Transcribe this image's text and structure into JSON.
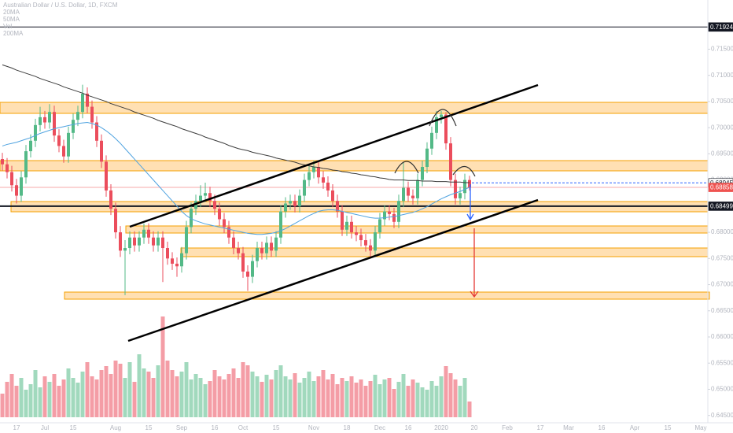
{
  "chart_data": {
    "type": "candlestick",
    "title": "Australian Dollar / U.S. Dollar, 1D, FXCM",
    "indicator_labels": [
      "20MA",
      "50MA",
      "Vol",
      "200MA"
    ],
    "categories": [
      null,
      null,
      null,
      "17",
      null,
      null,
      null,
      null,
      null,
      "Jul",
      null,
      null,
      null,
      null,
      null,
      "15",
      null,
      null,
      null,
      null,
      null,
      null,
      null,
      null,
      "Aug",
      null,
      null,
      null,
      null,
      null,
      null,
      "15",
      null,
      null,
      null,
      null,
      null,
      null,
      "Sep",
      null,
      null,
      null,
      null,
      null,
      null,
      "16",
      null,
      null,
      null,
      null,
      null,
      "Oct",
      null,
      null,
      null,
      null,
      null,
      null,
      "15",
      null,
      null,
      null,
      null,
      null,
      null,
      null,
      "Nov",
      null,
      null,
      null,
      null,
      null,
      null,
      "18",
      null,
      null,
      null,
      null,
      null,
      null,
      "Dec",
      null,
      null,
      null,
      null,
      null,
      "16",
      null,
      null,
      null,
      null,
      null,
      null,
      "2020",
      null,
      null,
      null,
      null,
      null,
      null,
      "20",
      null,
      null,
      null,
      null,
      null,
      null,
      "Feb",
      null,
      null,
      null,
      null,
      null,
      null,
      "17",
      null,
      null,
      null,
      null,
      null,
      "Mar",
      null,
      null,
      null,
      null,
      null,
      null,
      "16",
      null,
      null,
      null,
      null,
      null,
      null,
      "Apr",
      null,
      null,
      null,
      null,
      null,
      null,
      "15",
      null,
      null,
      null,
      null,
      null,
      null,
      "May",
      null
    ],
    "open": [
      0.694,
      0.693,
      0.6915,
      0.689,
      0.687,
      0.6905,
      0.6955,
      0.6975,
      0.7005,
      0.702,
      0.701,
      0.703,
      0.6985,
      0.6965,
      0.6945,
      0.699,
      0.7015,
      0.703,
      0.7065,
      0.704,
      0.701,
      0.6975,
      0.6935,
      0.688,
      0.6845,
      0.68,
      0.6765,
      0.677,
      0.679,
      0.6775,
      0.679,
      0.6805,
      0.679,
      0.6775,
      0.679,
      0.677,
      0.675,
      0.674,
      0.6735,
      0.676,
      0.681,
      0.6845,
      0.686,
      0.687,
      0.6875,
      0.686,
      0.6845,
      0.6825,
      0.681,
      0.679,
      0.677,
      0.676,
      0.6725,
      0.6715,
      0.6745,
      0.677,
      0.676,
      0.678,
      0.6765,
      0.679,
      0.684,
      0.6855,
      0.686,
      0.685,
      0.687,
      0.69,
      0.6915,
      0.6925,
      0.6905,
      0.6895,
      0.688,
      0.686,
      0.684,
      0.6805,
      0.682,
      0.68,
      0.6795,
      0.6785,
      0.6775,
      0.6765,
      0.68,
      0.6825,
      0.684,
      0.6835,
      0.682,
      0.686,
      0.6885,
      0.687,
      0.6865,
      0.69,
      0.6925,
      0.696,
      0.699,
      0.702,
      0.7025,
      0.697,
      0.69,
      0.6865,
      0.6875,
      0.69,
      null,
      null,
      null,
      null,
      null,
      null,
      null,
      null,
      null,
      null,
      null,
      null,
      null,
      null,
      null,
      null,
      null,
      null,
      null,
      null,
      null,
      null,
      null,
      null,
      null,
      null,
      null,
      null,
      null,
      null,
      null,
      null,
      null,
      null,
      null,
      null,
      null,
      null,
      null,
      null,
      null,
      null,
      null,
      null,
      null,
      null,
      null,
      null,
      null,
      null
    ],
    "high": [
      0.6952,
      0.6942,
      0.6927,
      0.6902,
      0.6917,
      0.6967,
      0.6987,
      0.7017,
      0.704,
      0.7032,
      0.7045,
      0.7042,
      0.6997,
      0.6977,
      0.7002,
      0.7027,
      0.7042,
      0.7082,
      0.7077,
      0.7052,
      0.7022,
      0.6987,
      0.6947,
      0.6892,
      0.6857,
      0.6812,
      0.6785,
      0.6802,
      0.6802,
      0.6802,
      0.6817,
      0.6817,
      0.6802,
      0.6802,
      0.6802,
      0.6782,
      0.6762,
      0.6752,
      0.6772,
      0.6822,
      0.6857,
      0.6872,
      0.689,
      0.6895,
      0.6887,
      0.6872,
      0.6857,
      0.6837,
      0.6822,
      0.6802,
      0.6782,
      0.6772,
      0.6737,
      0.6757,
      0.6782,
      0.6782,
      0.6792,
      0.6792,
      0.6802,
      0.6852,
      0.6867,
      0.6872,
      0.6872,
      0.6882,
      0.6912,
      0.6927,
      0.6937,
      0.6937,
      0.6917,
      0.6907,
      0.6892,
      0.6872,
      0.6852,
      0.6832,
      0.6832,
      0.6812,
      0.6807,
      0.6797,
      0.6787,
      0.6812,
      0.6837,
      0.6852,
      0.6852,
      0.6847,
      0.6872,
      0.6935,
      0.6897,
      0.6882,
      0.6912,
      0.6937,
      0.6972,
      0.7002,
      0.7032,
      0.7032,
      0.703,
      0.6982,
      0.6912,
      0.6887,
      0.6912,
      0.6908,
      null,
      null,
      null,
      null,
      null,
      null,
      null,
      null,
      null,
      null,
      null,
      null,
      null,
      null,
      null,
      null,
      null,
      null,
      null,
      null,
      null,
      null,
      null,
      null,
      null,
      null,
      null,
      null,
      null,
      null,
      null,
      null,
      null,
      null,
      null,
      null,
      null,
      null,
      null,
      null,
      null,
      null,
      null,
      null,
      null,
      null,
      null,
      null,
      null,
      null
    ],
    "low": [
      0.6918,
      0.6903,
      0.6878,
      0.6855,
      0.6858,
      0.6893,
      0.6943,
      0.6963,
      0.6993,
      0.6998,
      0.6998,
      0.6973,
      0.6953,
      0.6933,
      0.6933,
      0.6978,
      0.7003,
      0.7018,
      0.7028,
      0.6998,
      0.6963,
      0.6923,
      0.6868,
      0.6833,
      0.6788,
      0.6753,
      0.668,
      0.6758,
      0.6763,
      0.6763,
      0.6778,
      0.6778,
      0.6763,
      0.6763,
      0.6705,
      0.6738,
      0.6728,
      0.6715,
      0.6723,
      0.6748,
      0.6798,
      0.6833,
      0.6848,
      0.6858,
      0.6848,
      0.6833,
      0.6813,
      0.6798,
      0.6778,
      0.6758,
      0.6748,
      0.6713,
      0.6688,
      0.6703,
      0.6733,
      0.6748,
      0.6748,
      0.6753,
      0.6753,
      0.6778,
      0.6828,
      0.6843,
      0.6838,
      0.6838,
      0.6858,
      0.6888,
      0.6903,
      0.6893,
      0.6883,
      0.6868,
      0.6848,
      0.6828,
      0.6793,
      0.6793,
      0.6788,
      0.6783,
      0.6773,
      0.6763,
      0.6753,
      0.6753,
      0.6788,
      0.6813,
      0.6823,
      0.6808,
      0.6808,
      0.6848,
      0.6858,
      0.6853,
      0.6853,
      0.6888,
      0.6913,
      0.6948,
      0.6978,
      0.7008,
      0.6958,
      0.6888,
      0.6853,
      0.6853,
      0.6863,
      0.688,
      null,
      null,
      null,
      null,
      null,
      null,
      null,
      null,
      null,
      null,
      null,
      null,
      null,
      null,
      null,
      null,
      null,
      null,
      null,
      null,
      null,
      null,
      null,
      null,
      null,
      null,
      null,
      null,
      null,
      null,
      null,
      null,
      null,
      null,
      null,
      null,
      null,
      null,
      null,
      null,
      null,
      null,
      null,
      null,
      null,
      null,
      null,
      null,
      null,
      null
    ],
    "close": [
      0.693,
      0.6915,
      0.689,
      0.687,
      0.6905,
      0.6955,
      0.6975,
      0.7005,
      0.702,
      0.701,
      0.703,
      0.6985,
      0.6965,
      0.6945,
      0.699,
      0.7015,
      0.703,
      0.7065,
      0.704,
      0.701,
      0.6975,
      0.6935,
      0.688,
      0.6845,
      0.68,
      0.6765,
      0.677,
      0.679,
      0.6775,
      0.679,
      0.6805,
      0.679,
      0.6775,
      0.679,
      0.677,
      0.675,
      0.674,
      0.6735,
      0.676,
      0.681,
      0.6845,
      0.686,
      0.687,
      0.6875,
      0.686,
      0.6845,
      0.6825,
      0.681,
      0.679,
      0.677,
      0.676,
      0.6725,
      0.6715,
      0.6745,
      0.677,
      0.676,
      0.678,
      0.6765,
      0.679,
      0.684,
      0.6855,
      0.686,
      0.685,
      0.687,
      0.69,
      0.6915,
      0.6925,
      0.6905,
      0.6895,
      0.688,
      0.686,
      0.684,
      0.6805,
      0.682,
      0.68,
      0.6795,
      0.6785,
      0.6775,
      0.6765,
      0.68,
      0.6825,
      0.684,
      0.6835,
      0.682,
      0.686,
      0.6885,
      0.687,
      0.6865,
      0.69,
      0.6925,
      0.696,
      0.699,
      0.702,
      0.7025,
      0.697,
      0.69,
      0.6865,
      0.6875,
      0.69,
      0.6886,
      null,
      null,
      null,
      null,
      null,
      null,
      null,
      null,
      null,
      null,
      null,
      null,
      null,
      null,
      null,
      null,
      null,
      null,
      null,
      null,
      null,
      null,
      null,
      null,
      null,
      null,
      null,
      null,
      null,
      null,
      null,
      null,
      null,
      null,
      null,
      null,
      null,
      null,
      null,
      null,
      null,
      null,
      null,
      null,
      null,
      null,
      null,
      null,
      null,
      null
    ],
    "volume": [
      30,
      45,
      55,
      40,
      50,
      35,
      42,
      60,
      38,
      52,
      45,
      55,
      40,
      48,
      62,
      50,
      44,
      58,
      70,
      52,
      48,
      60,
      65,
      55,
      72,
      68,
      50,
      70,
      45,
      80,
      62,
      58,
      50,
      66,
      128,
      72,
      60,
      52,
      58,
      70,
      48,
      55,
      50,
      42,
      46,
      60,
      52,
      48,
      55,
      62,
      50,
      70,
      66,
      58,
      52,
      45,
      54,
      48,
      60,
      66,
      52,
      48,
      56,
      44,
      50,
      58,
      46,
      52,
      60,
      48,
      55,
      42,
      50,
      46,
      52,
      44,
      48,
      40,
      46,
      54,
      42,
      48,
      50,
      36,
      45,
      55,
      40,
      48,
      44,
      38,
      35,
      46,
      40,
      52,
      65,
      56,
      48,
      40,
      50,
      20,
      null,
      null,
      null,
      null,
      null,
      null,
      null,
      null,
      null,
      null,
      null,
      null,
      null,
      null,
      null,
      null,
      null,
      null,
      null,
      null,
      null,
      null,
      null,
      null,
      null,
      null,
      null,
      null,
      null,
      null,
      null,
      null,
      null,
      null,
      null,
      null,
      null,
      null,
      null,
      null,
      null,
      null,
      null,
      null,
      null,
      null,
      null,
      null,
      null,
      null
    ],
    "series": [
      {
        "name": "200MA",
        "color": "#3c3c3c",
        "values": [
          0.712,
          0.7117,
          0.7114,
          0.711,
          0.7107,
          0.7104,
          0.7101,
          0.7098,
          0.7094,
          0.7091,
          0.7088,
          0.7085,
          0.7082,
          0.7078,
          0.7075,
          0.7072,
          0.7069,
          0.7066,
          0.7062,
          0.7059,
          0.7056,
          0.7053,
          0.705,
          0.7046,
          0.7043,
          0.704,
          0.7037,
          0.7034,
          0.703,
          0.7027,
          0.7024,
          0.7021,
          0.7018,
          0.7014,
          0.7011,
          0.7008,
          0.7005,
          0.7002,
          0.6998,
          0.6995,
          0.6992,
          0.6989,
          0.6986,
          0.6982,
          0.6979,
          0.6976,
          0.6973,
          0.697,
          0.6966,
          0.6963,
          0.696,
          0.6958,
          0.6956,
          0.6953,
          0.6951,
          0.6949,
          0.6947,
          0.6945,
          0.6942,
          0.694,
          0.6938,
          0.6936,
          0.6934,
          0.6931,
          0.6929,
          0.6927,
          0.6925,
          0.6924,
          0.6922,
          0.6921,
          0.6919,
          0.6918,
          0.6916,
          0.6915,
          0.6913,
          0.6912,
          0.691,
          0.6909,
          0.6907,
          0.6906,
          0.6904,
          0.6903,
          0.6901,
          0.69,
          0.69,
          0.69,
          0.6899,
          0.6899,
          0.6899,
          0.6898,
          0.6898,
          0.6898,
          0.6897,
          0.6897,
          0.6897,
          0.6896,
          0.6896,
          0.6896,
          0.6895,
          0.6895,
          null,
          null,
          null,
          null,
          null,
          null,
          null,
          null,
          null,
          null,
          null,
          null,
          null,
          null,
          null,
          null,
          null,
          null,
          null,
          null,
          null,
          null,
          null,
          null,
          null,
          null,
          null,
          null,
          null,
          null,
          null,
          null,
          null,
          null,
          null,
          null,
          null,
          null,
          null,
          null,
          null,
          null,
          null,
          null,
          null,
          null,
          null,
          null,
          null,
          null
        ]
      },
      {
        "name": "50MA",
        "color": "#4fa3e0",
        "values": [
          0.6965,
          0.6968,
          0.697,
          0.6972,
          0.6975,
          0.6978,
          0.6981,
          0.6985,
          0.6989,
          0.6992,
          0.6995,
          0.6998,
          0.7,
          0.7002,
          0.7004,
          0.7006,
          0.7008,
          0.7009,
          0.701,
          0.7008,
          0.7005,
          0.7,
          0.6994,
          0.6987,
          0.6979,
          0.697,
          0.696,
          0.695,
          0.694,
          0.693,
          0.692,
          0.691,
          0.69,
          0.689,
          0.688,
          0.687,
          0.686,
          0.685,
          0.684,
          0.6832,
          0.6826,
          0.6822,
          0.6819,
          0.6816,
          0.6814,
          0.6812,
          0.681,
          0.6808,
          0.6806,
          0.6804,
          0.6802,
          0.68,
          0.6798,
          0.6797,
          0.6796,
          0.6796,
          0.6797,
          0.6798,
          0.68,
          0.6803,
          0.6807,
          0.6812,
          0.6817,
          0.6822,
          0.6827,
          0.6832,
          0.6836,
          0.684,
          0.6842,
          0.6843,
          0.6843,
          0.6842,
          0.684,
          0.6838,
          0.6836,
          0.6834,
          0.6832,
          0.683,
          0.6828,
          0.6827,
          0.6827,
          0.6828,
          0.6829,
          0.683,
          0.6832,
          0.6834,
          0.6836,
          0.6838,
          0.6841,
          0.6845,
          0.6849,
          0.6854,
          0.6859,
          0.6864,
          0.6868,
          0.6872,
          0.6875,
          0.6878,
          0.6882,
          0.6886,
          null,
          null,
          null,
          null,
          null,
          null,
          null,
          null,
          null,
          null,
          null,
          null,
          null,
          null,
          null,
          null,
          null,
          null,
          null,
          null,
          null,
          null,
          null,
          null,
          null,
          null,
          null,
          null,
          null,
          null,
          null,
          null,
          null,
          null,
          null,
          null,
          null,
          null,
          null,
          null,
          null,
          null,
          null,
          null,
          null,
          null,
          null,
          null,
          null,
          null
        ]
      }
    ],
    "up_color": "#53b987",
    "down_color": "#eb4d5c",
    "ylim": [
      0.6436,
      0.7244
    ],
    "yticks": [
      {
        "value": 0.645,
        "label": "0.64500"
      },
      {
        "value": 0.65,
        "label": "0.65000"
      },
      {
        "value": 0.655,
        "label": "0.65500"
      },
      {
        "value": 0.66,
        "label": "0.66000"
      },
      {
        "value": 0.665,
        "label": "0.66500"
      },
      {
        "value": 0.67,
        "label": "0.67000"
      },
      {
        "value": 0.675,
        "label": "0.67500"
      },
      {
        "value": 0.68,
        "label": "0.68000"
      },
      {
        "value": 0.685,
        "label": "0.68500"
      },
      {
        "value": 0.69,
        "label": "0.69000"
      },
      {
        "value": 0.695,
        "label": "0.69500"
      },
      {
        "value": 0.7,
        "label": "0.70000"
      },
      {
        "value": 0.705,
        "label": "0.70500"
      },
      {
        "value": 0.71,
        "label": "0.71000"
      },
      {
        "value": 0.715,
        "label": "0.71500"
      }
    ],
    "grid": false,
    "price_lines": [
      {
        "value": 0.71924,
        "color": "#131722",
        "line_color": "#131722",
        "line_style": "solid"
      },
      {
        "value": 0.68945,
        "color": "#ffffff",
        "line_color": "#2962ff",
        "line_style": "dashed"
      },
      {
        "value": 0.68858,
        "color": "#ef5350",
        "line_color": "#f7a9a8",
        "line_style": "solid"
      },
      {
        "value": 0.68499,
        "color": "#131722",
        "line_color": "#131722",
        "line_style": "thick"
      }
    ]
  }
}
